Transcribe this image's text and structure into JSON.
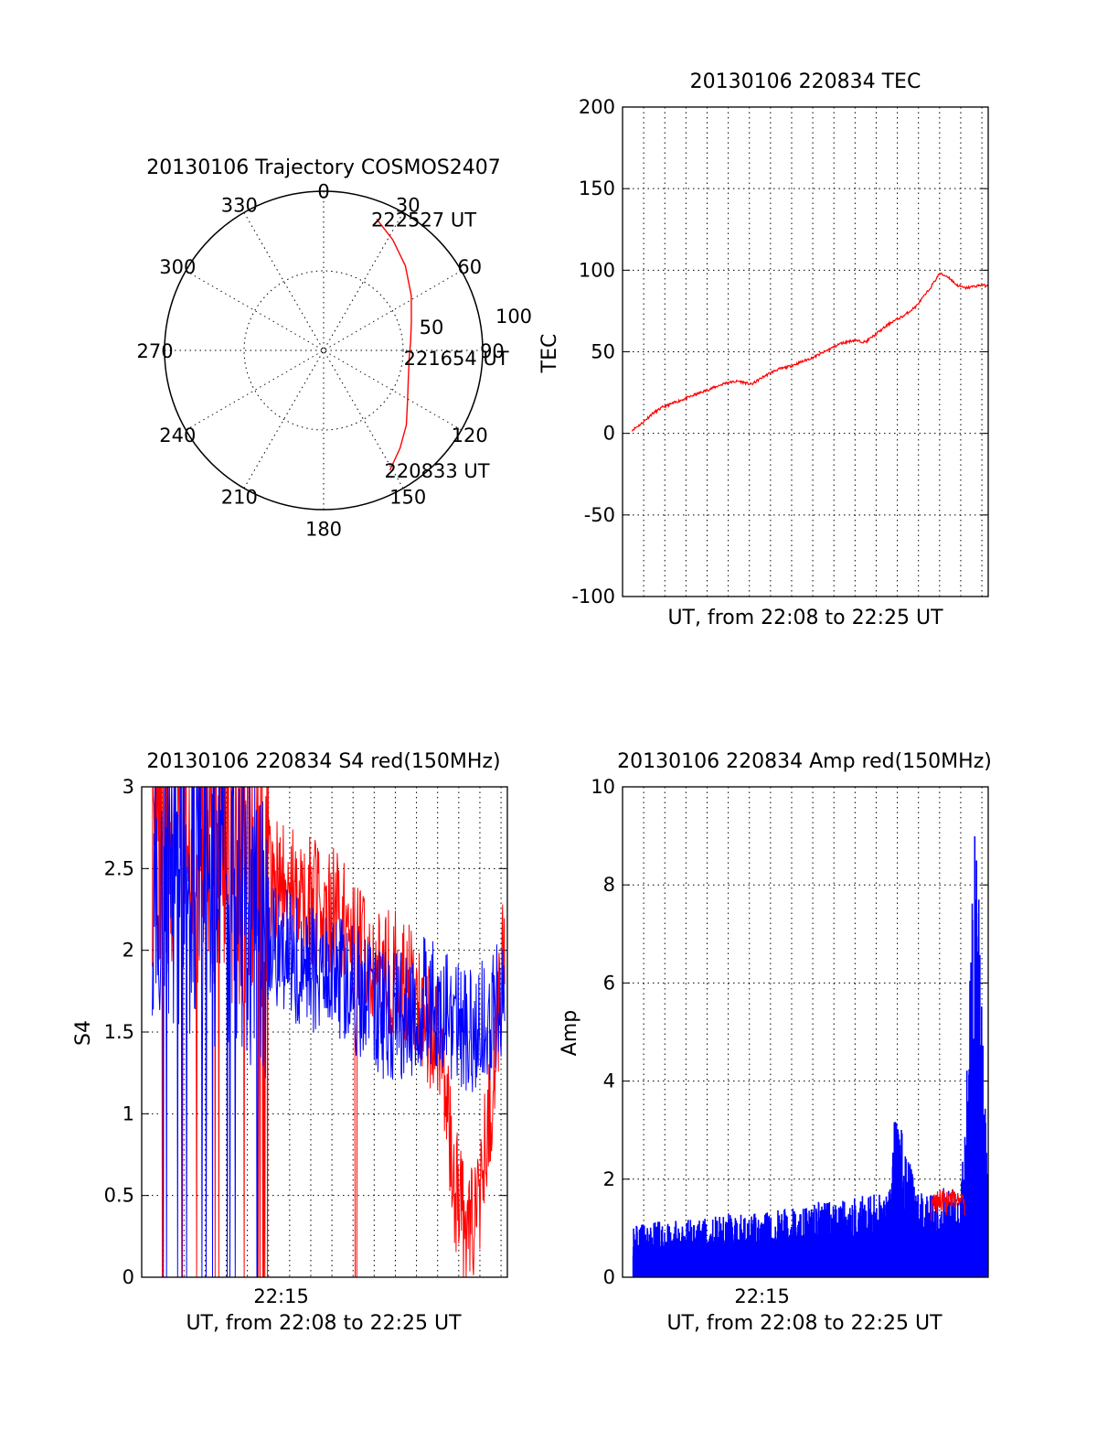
{
  "chart_data": [
    {
      "type": "polar-trajectory",
      "title": "20130106 Trajectory COSMOS2407",
      "angle_ticks": [
        "0",
        "30",
        "60",
        "90",
        "120",
        "150",
        "180",
        "210",
        "240",
        "270",
        "300",
        "330"
      ],
      "radial_ticks": [
        "50",
        "100"
      ],
      "radial_range": [
        0,
        100
      ],
      "grid": true,
      "series": [
        {
          "color": "#ff0000",
          "points": [
            {
              "angle": 22,
              "r": 89
            },
            {
              "angle": 32,
              "r": 82
            },
            {
              "angle": 44,
              "r": 74
            },
            {
              "angle": 58,
              "r": 65
            },
            {
              "angle": 72,
              "r": 58
            },
            {
              "angle": 84,
              "r": 55
            },
            {
              "angle": 95,
              "r": 54
            },
            {
              "angle": 108,
              "r": 56
            },
            {
              "angle": 120,
              "r": 61
            },
            {
              "angle": 132,
              "r": 70
            },
            {
              "angle": 142,
              "r": 78
            },
            {
              "angle": 151,
              "r": 86
            }
          ]
        }
      ],
      "annotations": [
        {
          "text": "222527 UT",
          "angle": 22,
          "r": 89
        },
        {
          "text": "221654 UT",
          "angle": 95,
          "r": 54
        },
        {
          "text": "220833 UT",
          "angle": 151,
          "r": 86
        }
      ]
    },
    {
      "type": "line",
      "title": "20130106 220834 TEC",
      "xlabel": "UT, from 22:08 to 22:25 UT",
      "ylabel": "TEC",
      "xlim": [
        0,
        17.3
      ],
      "ylim": [
        -100,
        200
      ],
      "yticks": [
        "200",
        "150",
        "100",
        "50",
        "0",
        "-50",
        "-100"
      ],
      "grid": true,
      "series": [
        {
          "color": "#ff0000",
          "x": [
            0.45,
            0.9,
            1.4,
            1.9,
            2.5,
            3.1,
            3.7,
            4.3,
            4.9,
            5.5,
            6.1,
            6.7,
            7.3,
            7.9,
            8.5,
            9.1,
            9.7,
            10.3,
            10.9,
            11.5,
            12.1,
            12.7,
            13.3,
            13.9,
            14.5,
            15.0,
            15.4,
            15.8,
            16.2,
            16.6,
            17.0,
            17.3
          ],
          "y": [
            2,
            6,
            12,
            16,
            19,
            22,
            25,
            28,
            31,
            32,
            30,
            35,
            39,
            41,
            44,
            47,
            51,
            55,
            57,
            56,
            62,
            68,
            72,
            78,
            88,
            98,
            96,
            91,
            89,
            90,
            91,
            90
          ]
        }
      ]
    },
    {
      "type": "line",
      "title": "20130106 220834 S4 red(150MHz)",
      "xlabel": "UT, from 22:08 to 22:25 UT",
      "ylabel": "S4",
      "xlim": [
        0,
        17.3
      ],
      "ylim": [
        0,
        3
      ],
      "yticks": [
        "3",
        "2.5",
        "2",
        "1.5",
        "1",
        "0.5",
        "0"
      ],
      "xtick_labels": [
        {
          "x": 6.6,
          "label": "22:15"
        }
      ],
      "grid": true,
      "series": [
        {
          "color": "#ff0000",
          "x": [
            0.5,
            2,
            3.5,
            5,
            6.5,
            8,
            9.5,
            10.5,
            11.5,
            12.5,
            13.5,
            14.3,
            14.8,
            15.3,
            15.8,
            16.3,
            16.8,
            17.2
          ],
          "y": [
            2.8,
            2.7,
            2.6,
            2.5,
            2.4,
            2.3,
            2.2,
            2.0,
            1.9,
            1.8,
            1.6,
            1.3,
            0.6,
            0.25,
            0.3,
            0.8,
            1.5,
            2.2
          ]
        },
        {
          "color": "#0000ff",
          "x": [
            0.5,
            2,
            3.5,
            5,
            6.5,
            8,
            9.5,
            10.5,
            11.5,
            12.5,
            13.5,
            14.5,
            15.5,
            16.5,
            17.2
          ],
          "y": [
            2.5,
            2.4,
            2.3,
            2.2,
            2.0,
            1.9,
            1.8,
            1.7,
            1.6,
            1.6,
            1.7,
            1.6,
            1.5,
            1.6,
            1.7
          ]
        }
      ]
    },
    {
      "type": "line",
      "title": "20130106 220834 Amp red(150MHz)",
      "xlabel": "UT, from 22:08 to 22:25 UT",
      "ylabel": "Amp",
      "xlim": [
        0,
        17.3
      ],
      "ylim": [
        0,
        10
      ],
      "yticks": [
        "10",
        "8",
        "6",
        "4",
        "2",
        "0"
      ],
      "xtick_labels": [
        {
          "x": 6.6,
          "label": "22:15"
        }
      ],
      "grid": true,
      "series": [
        {
          "color": "#0000ff",
          "x": [
            0.5,
            2,
            3.5,
            5,
            6.5,
            8,
            9.5,
            10.5,
            11.5,
            12.5,
            13.0,
            14.0,
            15.0,
            16.0,
            16.7,
            17.3
          ],
          "y": [
            0.8,
            0.9,
            0.9,
            1.0,
            1.0,
            1.1,
            1.2,
            1.2,
            1.3,
            1.3,
            2.6,
            1.3,
            1.4,
            1.4,
            7.7,
            1.3
          ]
        },
        {
          "color": "#ff0000",
          "x": [
            14.6,
            15.0,
            15.4,
            15.8,
            16.2
          ],
          "y": [
            1.4,
            1.6,
            1.5,
            1.6,
            1.5
          ]
        }
      ]
    }
  ]
}
